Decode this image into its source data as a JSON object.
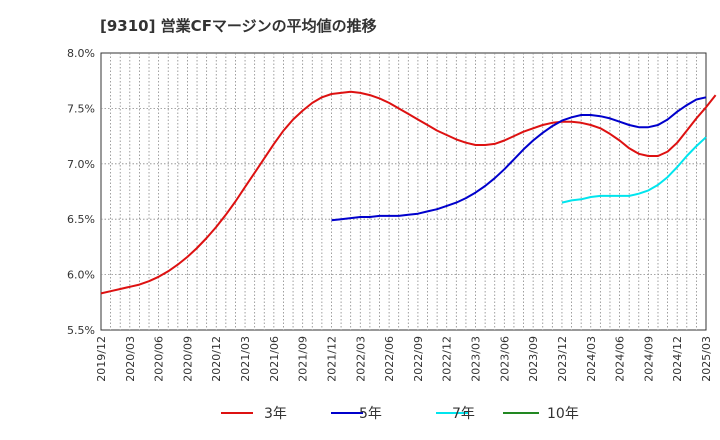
{
  "chart_data": {
    "type": "line",
    "title": "[9310]  営業CFマージンの平均値の推移",
    "xlabel": "",
    "ylabel": "",
    "ylim": [
      5.5,
      8.0
    ],
    "y_ticks": [
      "5.5%",
      "6.0%",
      "6.5%",
      "7.0%",
      "7.5%",
      "8.0%"
    ],
    "x_ticks": [
      "2019/12",
      "2020/03",
      "2020/06",
      "2020/09",
      "2020/12",
      "2021/03",
      "2021/06",
      "2021/09",
      "2021/12",
      "2022/03",
      "2022/06",
      "2022/09",
      "2022/12",
      "2023/03",
      "2023/06",
      "2023/09",
      "2023/12",
      "2024/03",
      "2024/06",
      "2024/09",
      "2024/12",
      "2025/03"
    ],
    "grid": true,
    "legend_position": "bottom",
    "series": [
      {
        "name": "3年",
        "color": "#dd1111",
        "points": [
          [
            "2019/12",
            5.83
          ],
          [
            "2020/01",
            5.85
          ],
          [
            "2020/02",
            5.87
          ],
          [
            "2020/03",
            5.89
          ],
          [
            "2020/04",
            5.91
          ],
          [
            "2020/05",
            5.94
          ],
          [
            "2020/06",
            5.98
          ],
          [
            "2020/07",
            6.03
          ],
          [
            "2020/08",
            6.09
          ],
          [
            "2020/09",
            6.16
          ],
          [
            "2020/10",
            6.24
          ],
          [
            "2020/11",
            6.33
          ],
          [
            "2020/12",
            6.43
          ],
          [
            "2021/01",
            6.54
          ],
          [
            "2021/02",
            6.66
          ],
          [
            "2021/03",
            6.79
          ],
          [
            "2021/04",
            6.92
          ],
          [
            "2021/05",
            7.05
          ],
          [
            "2021/06",
            7.18
          ],
          [
            "2021/07",
            7.3
          ],
          [
            "2021/08",
            7.4
          ],
          [
            "2021/09",
            7.48
          ],
          [
            "2021/10",
            7.55
          ],
          [
            "2021/11",
            7.6
          ],
          [
            "2021/12",
            7.63
          ],
          [
            "2022/01",
            7.64
          ],
          [
            "2022/02",
            7.65
          ],
          [
            "2022/03",
            7.64
          ],
          [
            "2022/04",
            7.62
          ],
          [
            "2022/05",
            7.59
          ],
          [
            "2022/06",
            7.55
          ],
          [
            "2022/07",
            7.5
          ],
          [
            "2022/08",
            7.45
          ],
          [
            "2022/09",
            7.4
          ],
          [
            "2022/10",
            7.35
          ],
          [
            "2022/11",
            7.3
          ],
          [
            "2022/12",
            7.26
          ],
          [
            "2023/01",
            7.22
          ],
          [
            "2023/02",
            7.19
          ],
          [
            "2023/03",
            7.17
          ],
          [
            "2023/04",
            7.17
          ],
          [
            "2023/05",
            7.18
          ],
          [
            "2023/06",
            7.21
          ],
          [
            "2023/07",
            7.25
          ],
          [
            "2023/08",
            7.29
          ],
          [
            "2023/09",
            7.32
          ],
          [
            "2023/10",
            7.35
          ],
          [
            "2023/11",
            7.37
          ],
          [
            "2023/12",
            7.38
          ],
          [
            "2024/01",
            7.38
          ],
          [
            "2024/02",
            7.37
          ],
          [
            "2024/03",
            7.35
          ],
          [
            "2024/04",
            7.32
          ],
          [
            "2024/05",
            7.27
          ],
          [
            "2024/06",
            7.21
          ],
          [
            "2024/07",
            7.14
          ],
          [
            "2024/08",
            7.09
          ],
          [
            "2024/09",
            7.07
          ],
          [
            "2024/10",
            7.07
          ],
          [
            "2024/11",
            7.11
          ],
          [
            "2024/12",
            7.19
          ],
          [
            "2025/01",
            7.3
          ],
          [
            "2025/02",
            7.41
          ],
          [
            "2025/03",
            7.51
          ],
          [
            "2025/04",
            7.62
          ]
        ]
      },
      {
        "name": "5年",
        "color": "#0000cc",
        "points": [
          [
            "2021/12",
            6.49
          ],
          [
            "2022/01",
            6.5
          ],
          [
            "2022/02",
            6.51
          ],
          [
            "2022/03",
            6.52
          ],
          [
            "2022/04",
            6.52
          ],
          [
            "2022/05",
            6.53
          ],
          [
            "2022/06",
            6.53
          ],
          [
            "2022/07",
            6.53
          ],
          [
            "2022/08",
            6.54
          ],
          [
            "2022/09",
            6.55
          ],
          [
            "2022/10",
            6.57
          ],
          [
            "2022/11",
            6.59
          ],
          [
            "2022/12",
            6.62
          ],
          [
            "2023/01",
            6.65
          ],
          [
            "2023/02",
            6.69
          ],
          [
            "2023/03",
            6.74
          ],
          [
            "2023/04",
            6.8
          ],
          [
            "2023/05",
            6.87
          ],
          [
            "2023/06",
            6.95
          ],
          [
            "2023/07",
            7.04
          ],
          [
            "2023/08",
            7.13
          ],
          [
            "2023/09",
            7.21
          ],
          [
            "2023/10",
            7.28
          ],
          [
            "2023/11",
            7.34
          ],
          [
            "2023/12",
            7.39
          ],
          [
            "2024/01",
            7.42
          ],
          [
            "2024/02",
            7.44
          ],
          [
            "2024/03",
            7.44
          ],
          [
            "2024/04",
            7.43
          ],
          [
            "2024/05",
            7.41
          ],
          [
            "2024/06",
            7.38
          ],
          [
            "2024/07",
            7.35
          ],
          [
            "2024/08",
            7.33
          ],
          [
            "2024/09",
            7.33
          ],
          [
            "2024/10",
            7.35
          ],
          [
            "2024/11",
            7.4
          ],
          [
            "2024/12",
            7.47
          ],
          [
            "2025/01",
            7.53
          ],
          [
            "2025/02",
            7.58
          ],
          [
            "2025/03",
            7.6
          ]
        ]
      },
      {
        "name": "7年",
        "color": "#00e5ee",
        "points": [
          [
            "2023/12",
            6.65
          ],
          [
            "2024/01",
            6.67
          ],
          [
            "2024/02",
            6.68
          ],
          [
            "2024/03",
            6.7
          ],
          [
            "2024/04",
            6.71
          ],
          [
            "2024/05",
            6.71
          ],
          [
            "2024/06",
            6.71
          ],
          [
            "2024/07",
            6.71
          ],
          [
            "2024/08",
            6.73
          ],
          [
            "2024/09",
            6.76
          ],
          [
            "2024/10",
            6.81
          ],
          [
            "2024/11",
            6.88
          ],
          [
            "2024/12",
            6.97
          ],
          [
            "2025/01",
            7.07
          ],
          [
            "2025/02",
            7.16
          ],
          [
            "2025/03",
            7.24
          ]
        ]
      },
      {
        "name": "10年",
        "color": "#228822",
        "points": []
      }
    ]
  }
}
